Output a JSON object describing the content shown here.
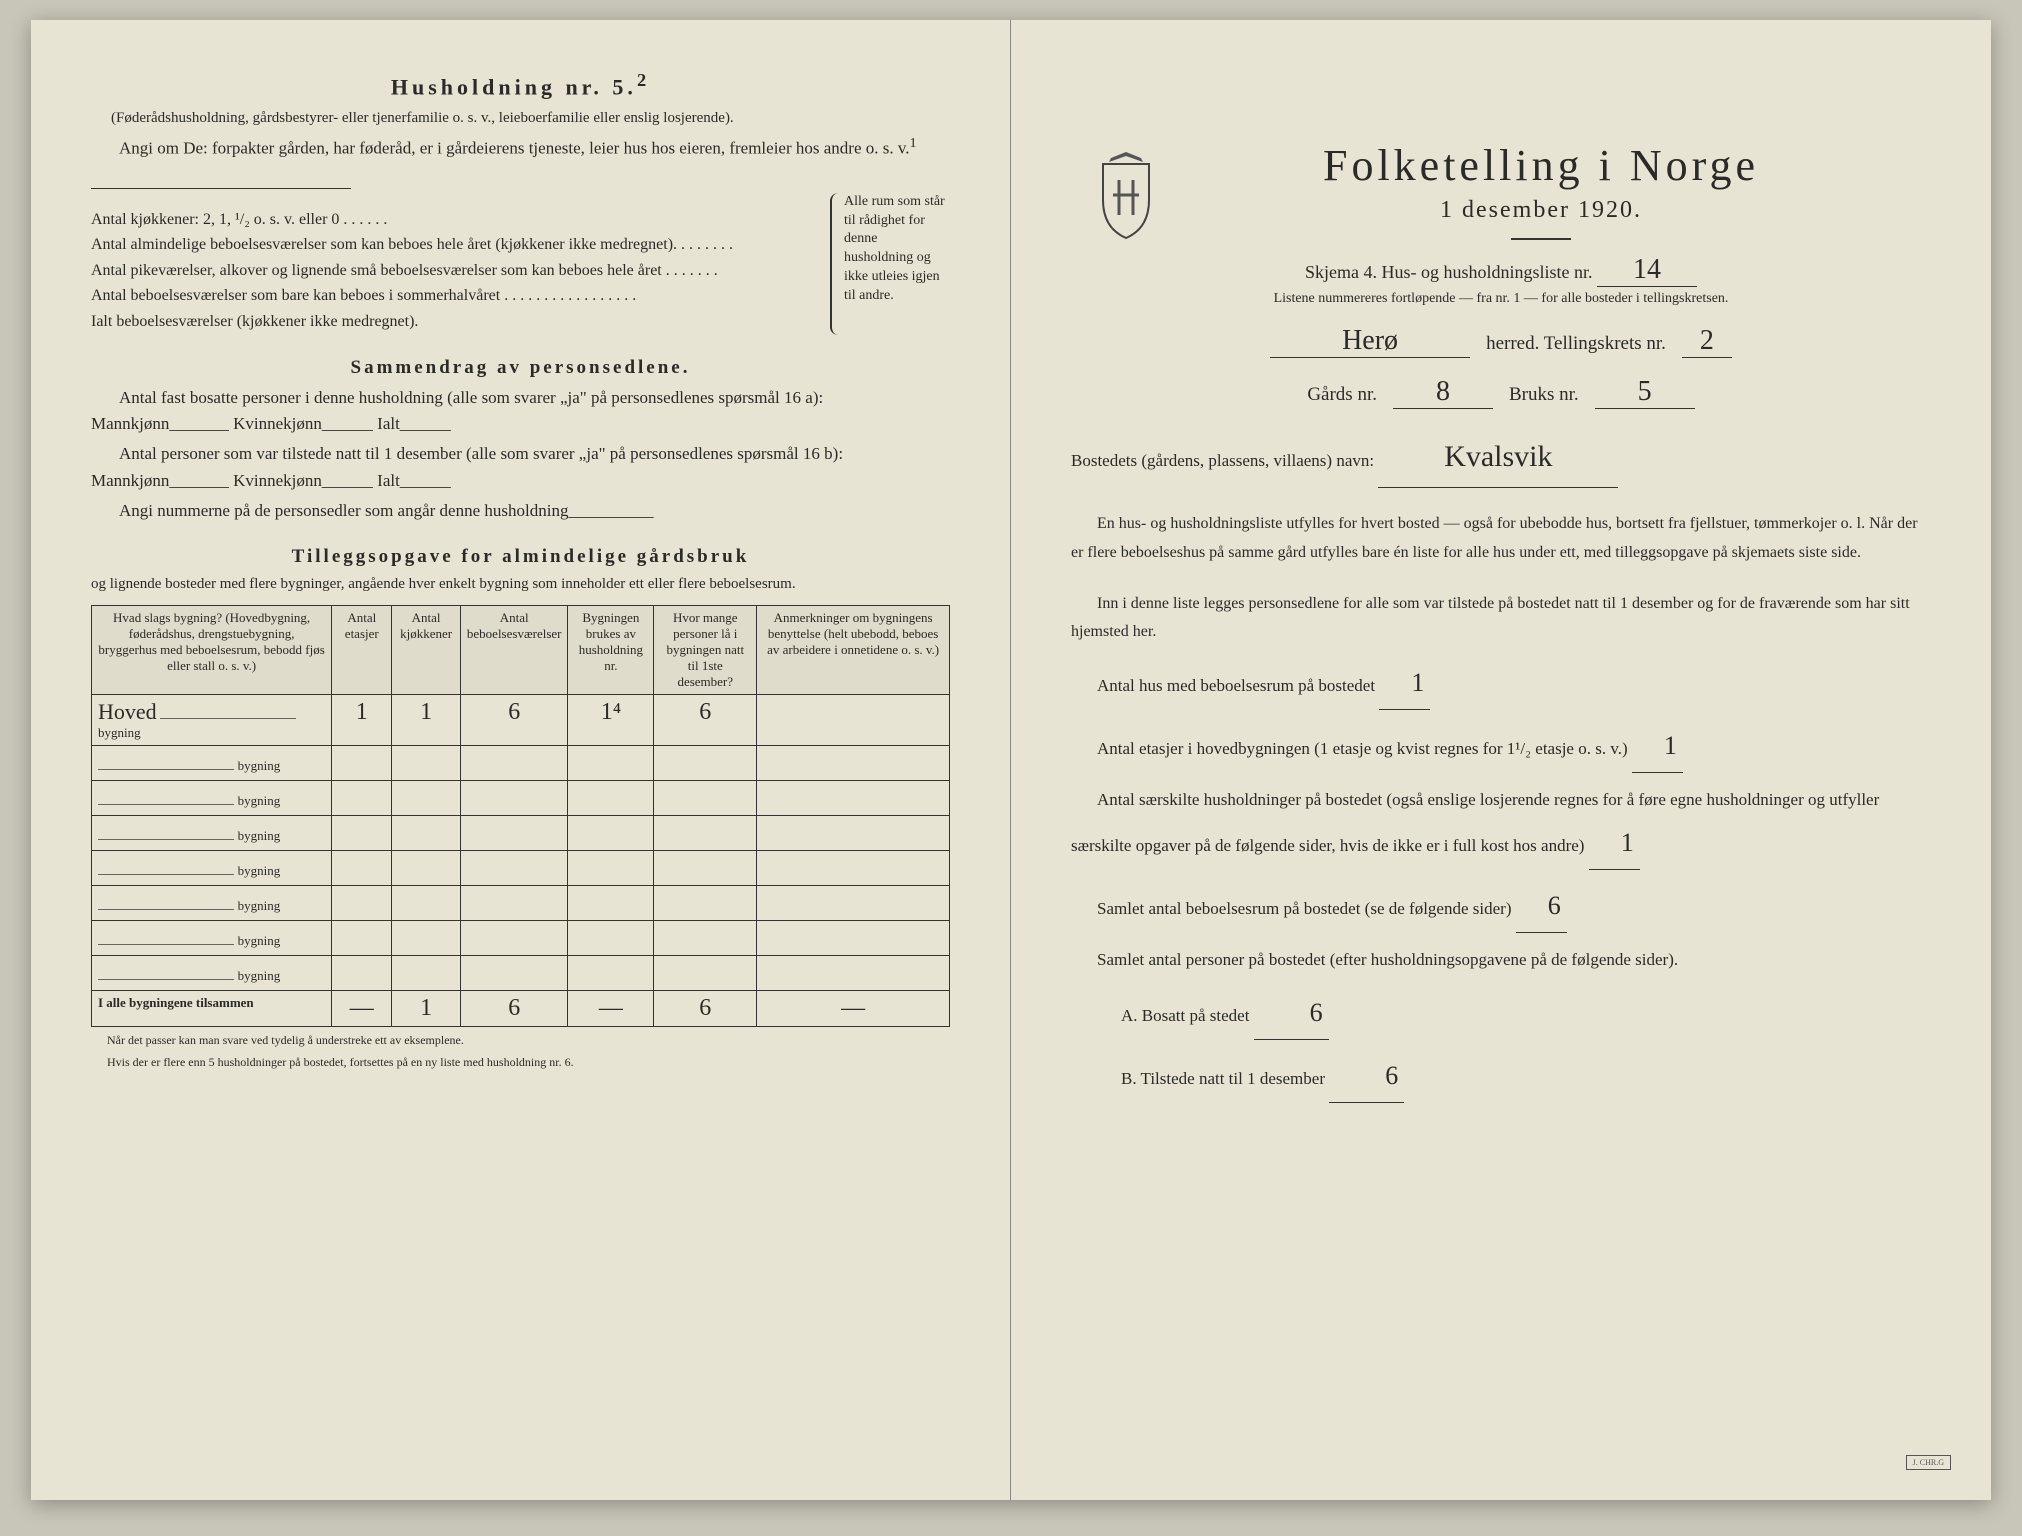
{
  "left": {
    "household_title": "Husholdning nr. 5.",
    "household_sup": "2",
    "household_note": "(Føderådshusholdning, gårdsbestyrer- eller tjenerfamilie o. s. v., leieboerfamilie eller enslig losjerende).",
    "angi_om": "Angi om De: forpakter gården, har føderåd, er i gårdeierens tjeneste, leier hus hos eieren, fremleier hos andre o. s. v.",
    "angi_sup": "1",
    "antal_lines": [
      "Antal kjøkkener: 2, 1, ¹/₂ o. s. v. eller 0 . . . . . .",
      "Antal almindelige beboelsesværelser som kan beboes hele året (kjøkkener ikke medregnet). . . . . . . .",
      "Antal pikeværelser, alkover og lignende små beboelsesværelser som kan beboes hele året . . . . . . .",
      "Antal beboelsesværelser som bare kan beboes i sommerhalvåret . . . . . . . . . . . . . . . . .",
      "Ialt beboelsesværelser (kjøkkener ikke medregnet)."
    ],
    "bracket_text": "Alle rum som står til rådighet for denne husholdning og ikke utleies igjen til andre.",
    "sammendrag_title": "Sammendrag av personsedlene.",
    "sammendrag_p1": "Antal fast bosatte personer i denne husholdning (alle som svarer „ja\" på personsedlenes spørsmål 16 a): Mannkjønn_______ Kvinnekjønn______ Ialt______",
    "sammendrag_p2": "Antal personer som var tilstede natt til 1 desember (alle som svarer „ja\" på personsedlenes spørsmål 16 b): Mannkjønn_______ Kvinnekjønn______ Ialt______",
    "sammendrag_p3": "Angi nummerne på de personsedler som angår denne husholdning__________",
    "tillegg_title": "Tilleggsopgave for almindelige gårdsbruk",
    "tillegg_intro": "og lignende bosteder med flere bygninger, angående hver enkelt bygning som inneholder ett eller flere beboelsesrum.",
    "columns": [
      "Hvad slags bygning?\n(Hovedbygning, føderådshus, drengstuebygning, bryggerhus med beboelsesrum, bebodd fjøs eller stall o. s. v.)",
      "Antal etasjer",
      "Antal kjøkkener",
      "Antal beboelsesværelser",
      "Bygningen brukes av husholdning nr.",
      "Hvor mange personer lå i bygningen natt til 1ste desember?",
      "Anmerkninger om bygningens benyttelse (helt ubebodd, beboes av arbeidere i onnetidene o. s. v.)"
    ],
    "rows": [
      {
        "name": "Hoved",
        "vals": [
          "1",
          "1",
          "6",
          "1⁴",
          "6",
          ""
        ]
      },
      {
        "name": "",
        "vals": [
          "",
          "",
          "",
          "",
          "",
          ""
        ]
      },
      {
        "name": "",
        "vals": [
          "",
          "",
          "",
          "",
          "",
          ""
        ]
      },
      {
        "name": "",
        "vals": [
          "",
          "",
          "",
          "",
          "",
          ""
        ]
      },
      {
        "name": "",
        "vals": [
          "",
          "",
          "",
          "",
          "",
          ""
        ]
      },
      {
        "name": "",
        "vals": [
          "",
          "",
          "",
          "",
          "",
          ""
        ]
      },
      {
        "name": "",
        "vals": [
          "",
          "",
          "",
          "",
          "",
          ""
        ]
      },
      {
        "name": "",
        "vals": [
          "",
          "",
          "",
          "",
          "",
          ""
        ]
      }
    ],
    "totals_label": "I alle bygningene tilsammen",
    "totals": [
      "—",
      "1",
      "6",
      "—",
      "6",
      "—"
    ],
    "footnote1": "Når det passer kan man svare ved tydelig å understreke ett av eksemplene.",
    "footnote2": "Hvis der er flere enn 5 husholdninger på bostedet, fortsettes på en ny liste med husholdning nr. 6."
  },
  "right": {
    "main_title": "Folketelling i Norge",
    "sub_date": "1 desember 1920.",
    "form_line": "Skjema 4.   Hus- og husholdningsliste nr.",
    "form_nr": "14",
    "instructions": "Listene nummereres fortløpende — fra nr. 1 — for alle bosteder i tellingskretsen.",
    "herred_value": "Herø",
    "herred_label": "herred.   Tellingskrets nr.",
    "krets_nr": "2",
    "gards_label": "Gårds nr.",
    "gards_nr": "8",
    "bruks_label": "Bruks nr.",
    "bruks_nr": "5",
    "bosted_label": "Bostedets (gårdens, plassens, villaens) navn:",
    "bosted_value": "Kvalsvik",
    "body1": "En hus- og husholdningsliste utfylles for hvert bosted — også for ubebodde hus, bortsett fra fjellstuer, tømmerkojer o. l.  Når der er flere beboelseshus på samme gård utfylles bare én liste for alle hus under ett, med tilleggsopgave på skjemaets siste side.",
    "body2": "Inn i denne liste legges personsedlene for alle som var tilstede på bostedet natt til 1 desember og for de fraværende som har sitt hjemsted her.",
    "q1": "Antal hus med beboelsesrum på bostedet",
    "a1": "1",
    "q2": "Antal etasjer i hovedbygningen (1 etasje og kvist regnes for 1¹/₂ etasje o. s. v.)",
    "a2": "1",
    "q3": "Antal særskilte husholdninger på bostedet (også enslige losjerende regnes for å føre egne husholdninger og utfyller særskilte opgaver på de følgende sider, hvis de ikke er i full kost hos andre)",
    "a3": "1",
    "q4": "Samlet antal beboelsesrum på bostedet (se de følgende sider)",
    "a4": "6",
    "q5": "Samlet antal personer på bostedet (efter husholdningsopgavene på de følgende sider).",
    "q5a_label": "A.  Bosatt på stedet",
    "a5a": "6",
    "q5b_label": "B.  Tilstede natt til 1 desember",
    "a5b": "6"
  }
}
